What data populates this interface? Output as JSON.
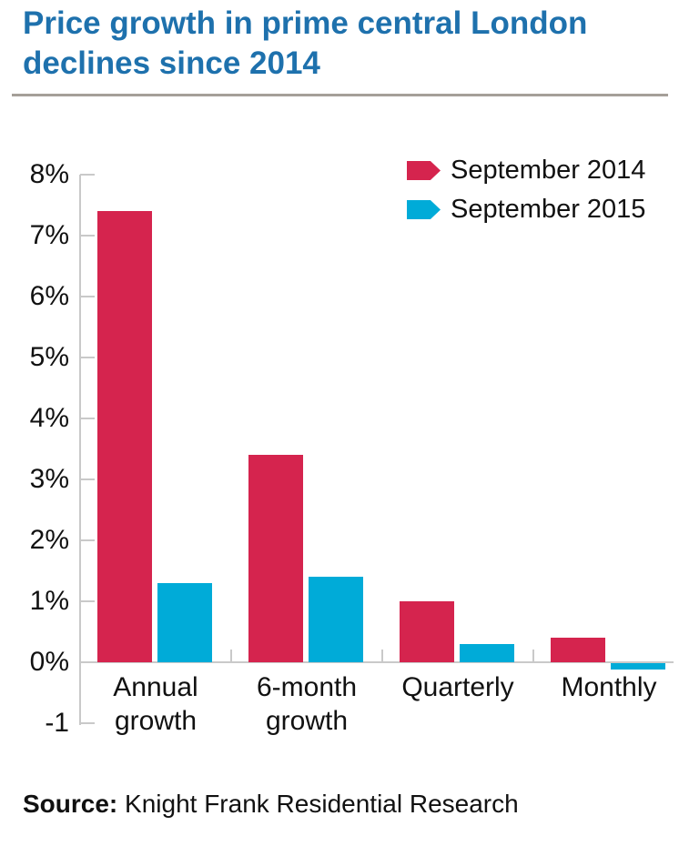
{
  "title": {
    "line1": "Price growth in prime central London",
    "line2": "declines since 2014"
  },
  "chart_data": {
    "type": "bar",
    "categories": [
      "Annual\ngrowth",
      "6-month\ngrowth",
      "Quarterly",
      "Monthly"
    ],
    "series": [
      {
        "name": "September 2014",
        "color": "#d5244e",
        "values": [
          7.4,
          3.4,
          1.0,
          0.4
        ]
      },
      {
        "name": "September 2015",
        "color": "#00abd8",
        "values": [
          1.3,
          1.4,
          0.3,
          -0.1
        ]
      }
    ],
    "title": "Price growth in prime central London declines since 2014",
    "xlabel": "",
    "ylabel": "",
    "ylim": [
      -1,
      8
    ],
    "y_tick_labels": [
      "8%",
      "7%",
      "6%",
      "5%",
      "4%",
      "3%",
      "2%",
      "1%",
      "0%",
      "-1"
    ],
    "grid": false,
    "legend_position": "top-right"
  },
  "source": {
    "label": "Source:",
    "text": " Knight Frank Residential Research"
  },
  "colors": {
    "title_blue": "#1e71ad",
    "axis_gray": "#c9c9c9",
    "divider_gray": "#a59f99",
    "red_2014": "#d5244e",
    "cyan_2015": "#00abd8"
  }
}
